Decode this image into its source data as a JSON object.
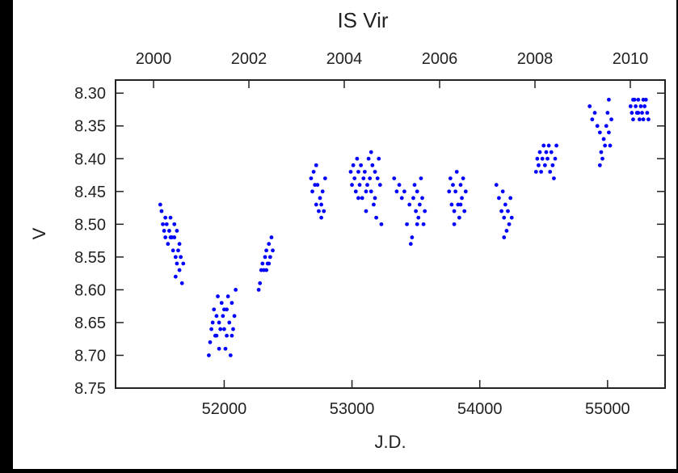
{
  "chart_data": {
    "type": "scatter",
    "title": "IS Vir",
    "xlabel": "J.D.",
    "ylabel": "V",
    "xlim": [
      51150,
      55450
    ],
    "ylim": [
      8.75,
      8.28
    ],
    "y_inverted": true,
    "x_ticks": [
      52000,
      53000,
      54000,
      55000
    ],
    "x_tick_labels": [
      "52000",
      "53000",
      "54000",
      "55000"
    ],
    "top_ticks": [
      2000,
      2002,
      2004,
      2006,
      2008,
      2010
    ],
    "top_tick_labels": [
      "2000",
      "2002",
      "2004",
      "2006",
      "2008",
      "2010"
    ],
    "y_ticks": [
      8.3,
      8.35,
      8.4,
      8.45,
      8.5,
      8.55,
      8.6,
      8.65,
      8.7,
      8.75
    ],
    "y_tick_labels": [
      "8.30",
      "8.35",
      "8.40",
      "8.45",
      "8.50",
      "8.55",
      "8.60",
      "8.65",
      "8.70",
      "8.75"
    ],
    "marker_color": "#0000ff",
    "grid": false,
    "series": [
      {
        "points": [
          [
            51500,
            8.47
          ],
          [
            51510,
            8.48
          ],
          [
            51520,
            8.5
          ],
          [
            51530,
            8.51
          ],
          [
            51540,
            8.52
          ],
          [
            51550,
            8.5
          ],
          [
            51560,
            8.53
          ],
          [
            51570,
            8.51
          ],
          [
            51580,
            8.49
          ],
          [
            51590,
            8.52
          ],
          [
            51600,
            8.54
          ],
          [
            51610,
            8.52
          ],
          [
            51620,
            8.55
          ],
          [
            51630,
            8.56
          ],
          [
            51640,
            8.54
          ],
          [
            51650,
            8.57
          ],
          [
            51660,
            8.55
          ],
          [
            51670,
            8.59
          ],
          [
            51680,
            8.56
          ],
          [
            51610,
            8.5
          ],
          [
            51630,
            8.51
          ],
          [
            51650,
            8.53
          ],
          [
            51540,
            8.49
          ],
          [
            51580,
            8.52
          ],
          [
            51620,
            8.58
          ],
          [
            51880,
            8.7
          ],
          [
            51890,
            8.68
          ],
          [
            51900,
            8.66
          ],
          [
            51910,
            8.65
          ],
          [
            51920,
            8.63
          ],
          [
            51930,
            8.67
          ],
          [
            51940,
            8.64
          ],
          [
            51950,
            8.61
          ],
          [
            51960,
            8.65
          ],
          [
            51970,
            8.66
          ],
          [
            51980,
            8.62
          ],
          [
            51990,
            8.64
          ],
          [
            52000,
            8.66
          ],
          [
            52010,
            8.69
          ],
          [
            52020,
            8.63
          ],
          [
            52030,
            8.61
          ],
          [
            52040,
            8.65
          ],
          [
            52050,
            8.7
          ],
          [
            52060,
            8.62
          ],
          [
            52070,
            8.66
          ],
          [
            52080,
            8.64
          ],
          [
            52090,
            8.6
          ],
          [
            51960,
            8.69
          ],
          [
            52020,
            8.67
          ],
          [
            52060,
            8.67
          ],
          [
            51940,
            8.67
          ],
          [
            52000,
            8.63
          ],
          [
            52270,
            8.6
          ],
          [
            52280,
            8.59
          ],
          [
            52290,
            8.57
          ],
          [
            52300,
            8.56
          ],
          [
            52310,
            8.57
          ],
          [
            52320,
            8.55
          ],
          [
            52330,
            8.54
          ],
          [
            52340,
            8.56
          ],
          [
            52350,
            8.53
          ],
          [
            52360,
            8.55
          ],
          [
            52370,
            8.52
          ],
          [
            52380,
            8.54
          ],
          [
            52350,
            8.56
          ],
          [
            52330,
            8.57
          ],
          [
            52680,
            8.43
          ],
          [
            52690,
            8.45
          ],
          [
            52700,
            8.42
          ],
          [
            52710,
            8.44
          ],
          [
            52720,
            8.47
          ],
          [
            52730,
            8.44
          ],
          [
            52740,
            8.48
          ],
          [
            52750,
            8.46
          ],
          [
            52760,
            8.49
          ],
          [
            52770,
            8.45
          ],
          [
            52780,
            8.48
          ],
          [
            52790,
            8.43
          ],
          [
            52720,
            8.41
          ],
          [
            52760,
            8.47
          ],
          [
            52990,
            8.42
          ],
          [
            53000,
            8.44
          ],
          [
            53010,
            8.41
          ],
          [
            53020,
            8.43
          ],
          [
            53030,
            8.45
          ],
          [
            53040,
            8.4
          ],
          [
            53050,
            8.42
          ],
          [
            53060,
            8.44
          ],
          [
            53070,
            8.41
          ],
          [
            53080,
            8.46
          ],
          [
            53090,
            8.43
          ],
          [
            53100,
            8.42
          ],
          [
            53110,
            8.48
          ],
          [
            53120,
            8.44
          ],
          [
            53130,
            8.4
          ],
          [
            53140,
            8.43
          ],
          [
            53150,
            8.45
          ],
          [
            53160,
            8.41
          ],
          [
            53170,
            8.47
          ],
          [
            53180,
            8.42
          ],
          [
            53190,
            8.49
          ],
          [
            53200,
            8.43
          ],
          [
            53210,
            8.4
          ],
          [
            53220,
            8.44
          ],
          [
            53230,
            8.5
          ],
          [
            53110,
            8.45
          ],
          [
            53050,
            8.46
          ],
          [
            53150,
            8.39
          ],
          [
            53180,
            8.46
          ],
          [
            53330,
            8.43
          ],
          [
            53350,
            8.45
          ],
          [
            53370,
            8.44
          ],
          [
            53390,
            8.46
          ],
          [
            53410,
            8.45
          ],
          [
            53430,
            8.5
          ],
          [
            53450,
            8.47
          ],
          [
            53470,
            8.52
          ],
          [
            53480,
            8.46
          ],
          [
            53490,
            8.44
          ],
          [
            53500,
            8.48
          ],
          [
            53510,
            8.45
          ],
          [
            53520,
            8.49
          ],
          [
            53530,
            8.47
          ],
          [
            53540,
            8.43
          ],
          [
            53550,
            8.46
          ],
          [
            53560,
            8.5
          ],
          [
            53570,
            8.48
          ],
          [
            53460,
            8.53
          ],
          [
            53510,
            8.5
          ],
          [
            53760,
            8.45
          ],
          [
            53770,
            8.43
          ],
          [
            53780,
            8.47
          ],
          [
            53790,
            8.44
          ],
          [
            53800,
            8.48
          ],
          [
            53810,
            8.45
          ],
          [
            53820,
            8.42
          ],
          [
            53830,
            8.47
          ],
          [
            53840,
            8.49
          ],
          [
            53850,
            8.44
          ],
          [
            53860,
            8.46
          ],
          [
            53870,
            8.43
          ],
          [
            53880,
            8.48
          ],
          [
            53890,
            8.45
          ],
          [
            53800,
            8.5
          ],
          [
            53850,
            8.47
          ],
          [
            54130,
            8.44
          ],
          [
            54150,
            8.46
          ],
          [
            54170,
            8.48
          ],
          [
            54180,
            8.45
          ],
          [
            54190,
            8.49
          ],
          [
            54200,
            8.47
          ],
          [
            54210,
            8.51
          ],
          [
            54220,
            8.48
          ],
          [
            54230,
            8.5
          ],
          [
            54240,
            8.46
          ],
          [
            54250,
            8.49
          ],
          [
            54190,
            8.52
          ],
          [
            54440,
            8.42
          ],
          [
            54450,
            8.4
          ],
          [
            54460,
            8.41
          ],
          [
            54470,
            8.39
          ],
          [
            54480,
            8.42
          ],
          [
            54490,
            8.4
          ],
          [
            54500,
            8.38
          ],
          [
            54510,
            8.41
          ],
          [
            54520,
            8.39
          ],
          [
            54530,
            8.4
          ],
          [
            54540,
            8.38
          ],
          [
            54550,
            8.42
          ],
          [
            54560,
            8.39
          ],
          [
            54570,
            8.41
          ],
          [
            54580,
            8.43
          ],
          [
            54590,
            8.4
          ],
          [
            54600,
            8.38
          ],
          [
            54860,
            8.32
          ],
          [
            54880,
            8.34
          ],
          [
            54900,
            8.33
          ],
          [
            54920,
            8.35
          ],
          [
            54940,
            8.36
          ],
          [
            54950,
            8.39
          ],
          [
            54960,
            8.4
          ],
          [
            54970,
            8.37
          ],
          [
            54980,
            8.38
          ],
          [
            54990,
            8.35
          ],
          [
            55000,
            8.33
          ],
          [
            55010,
            8.36
          ],
          [
            55020,
            8.38
          ],
          [
            55030,
            8.34
          ],
          [
            54940,
            8.41
          ],
          [
            55010,
            8.31
          ],
          [
            55180,
            8.32
          ],
          [
            55190,
            8.33
          ],
          [
            55200,
            8.34
          ],
          [
            55210,
            8.31
          ],
          [
            55220,
            8.32
          ],
          [
            55230,
            8.33
          ],
          [
            55240,
            8.31
          ],
          [
            55250,
            8.34
          ],
          [
            55260,
            8.32
          ],
          [
            55270,
            8.33
          ],
          [
            55280,
            8.34
          ],
          [
            55290,
            8.32
          ],
          [
            55300,
            8.31
          ],
          [
            55310,
            8.33
          ],
          [
            55320,
            8.34
          ],
          [
            55200,
            8.31
          ],
          [
            55240,
            8.33
          ],
          [
            55280,
            8.31
          ]
        ]
      }
    ]
  }
}
